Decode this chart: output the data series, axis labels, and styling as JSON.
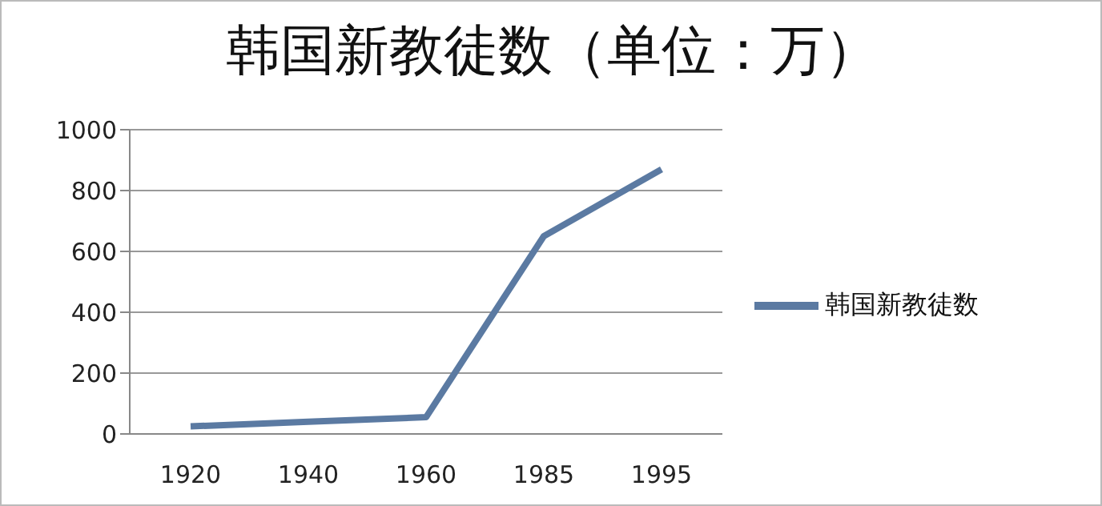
{
  "chart_data": {
    "type": "line",
    "title": "韩国新教徒数（单位：万）",
    "categories": [
      "1920",
      "1940",
      "1960",
      "1985",
      "1995"
    ],
    "series": [
      {
        "name": "韩国新教徒数",
        "color": "#5b7aa2",
        "values": [
          25,
          40,
          55,
          650,
          870
        ]
      }
    ],
    "ylim": [
      0,
      1000
    ],
    "yticks": [
      0,
      200,
      400,
      600,
      800,
      1000
    ],
    "grid": "y",
    "legend": "right",
    "marker": "none",
    "line_style": "solid"
  }
}
